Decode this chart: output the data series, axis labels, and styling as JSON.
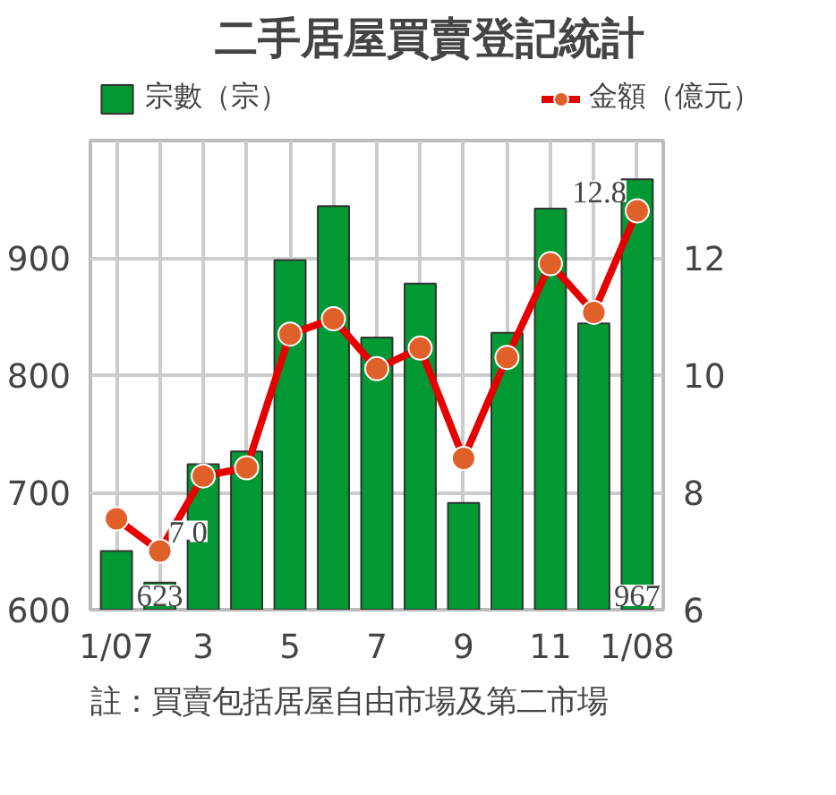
{
  "chart_data": {
    "type": "bar",
    "title": "二手居屋買賣登記統計",
    "categories": [
      "1/07",
      null,
      "3",
      null,
      "5",
      null,
      "7",
      null,
      "9",
      null,
      "11",
      null,
      "1/08"
    ],
    "series": [
      {
        "name": "宗數（宗）",
        "color": "#009933",
        "values": [
          650,
          623,
          724,
          735,
          898,
          944,
          832,
          878,
          691,
          836,
          942,
          844,
          967
        ],
        "value_labels": [
          null,
          "623",
          null,
          null,
          null,
          null,
          null,
          null,
          null,
          null,
          null,
          null,
          "967"
        ]
      },
      {
        "name": "金額（億元）",
        "type": "line",
        "axis": "y2",
        "color": "#e60000",
        "marker": "circle",
        "values": [
          7.55,
          7.0,
          8.28,
          8.42,
          10.7,
          10.96,
          10.11,
          10.46,
          8.58,
          10.3,
          11.9,
          11.07,
          12.8
        ],
        "value_labels": [
          null,
          "7.0",
          null,
          null,
          null,
          null,
          null,
          null,
          null,
          null,
          null,
          null,
          "12.8"
        ]
      }
    ],
    "ylim": [
      600,
      1000
    ],
    "yticks": [
      600,
      700,
      800,
      900
    ],
    "y2lim": [
      6,
      14
    ],
    "y2ticks": [
      6,
      8,
      10,
      12
    ],
    "grid": true,
    "legend": "top",
    "annotations": [
      "註：買賣包括居屋自由市場及第二市場"
    ]
  }
}
